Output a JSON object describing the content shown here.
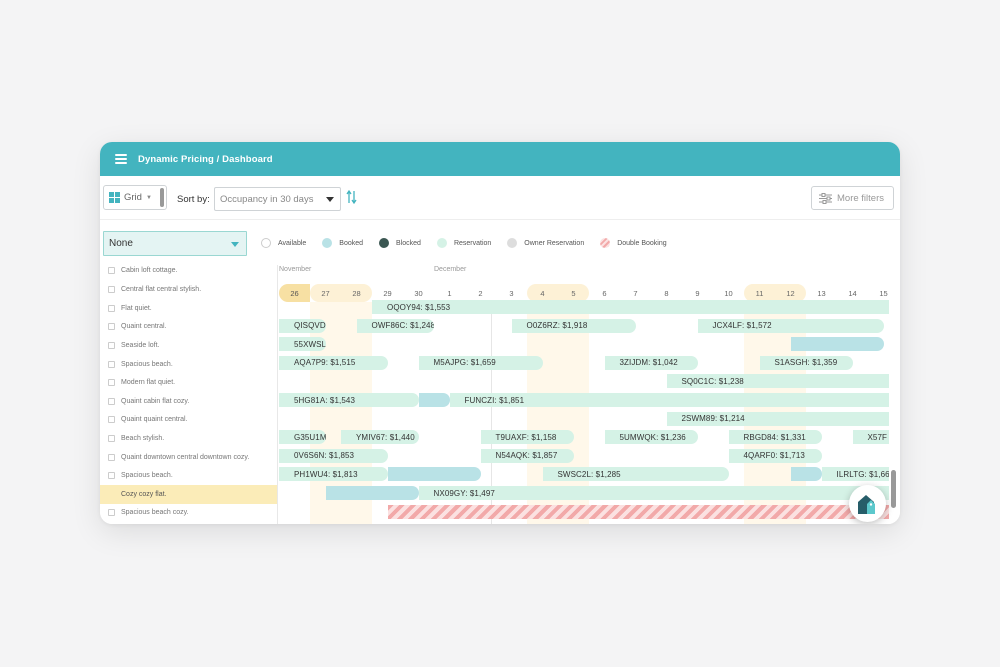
{
  "header": {
    "title": "Dynamic Pricing / Dashboard"
  },
  "toolbar": {
    "view_label": "Grid",
    "sort_label": "Sort by:",
    "sort_value": "Occupancy in 30 days",
    "more_filters_label": "More filters"
  },
  "filter": {
    "value": "None"
  },
  "legend": [
    {
      "label": "Available",
      "color": "#ffffff"
    },
    {
      "label": "Booked",
      "color": "#b9e2e6"
    },
    {
      "label": "Blocked",
      "color": "#3b5752"
    },
    {
      "label": "Reservation",
      "color": "#d5f2e6"
    },
    {
      "label": "Owner Reservation",
      "color": "#dddddd"
    },
    {
      "label": "Double Booking",
      "color": "#f2a9a9"
    }
  ],
  "listings": [
    "Cabin loft cottage.",
    "Central flat central stylish.",
    "Flat quiet.",
    "Quaint central.",
    "Seaside loft.",
    "Spacious beach.",
    "Modern flat quiet.",
    "Quaint cabin flat cozy.",
    "Quaint quaint central.",
    "Beach stylish.",
    "Quaint downtown central downtown cozy.",
    "Spacious beach.",
    "Cozy cozy flat.",
    "Spacious beach cozy."
  ],
  "selected_listing_index": 12,
  "calendar": {
    "months": [
      "November",
      "December"
    ],
    "dates": [
      "26",
      "27",
      "28",
      "29",
      "30",
      "1",
      "2",
      "3",
      "4",
      "5",
      "6",
      "7",
      "8",
      "9",
      "10",
      "11",
      "12",
      "13",
      "14",
      "15"
    ],
    "today_index": 0,
    "weekend_indices": [
      1,
      2,
      8,
      9,
      15,
      16
    ],
    "bookings": [
      {
        "row": 1,
        "start": 3,
        "end": 20,
        "label": "OQOY94: $1,553",
        "type": "reservation"
      },
      {
        "row": 2,
        "start": 0,
        "end": 1.5,
        "label": "QISQVD",
        "type": "reservation"
      },
      {
        "row": 2,
        "start": 2.5,
        "end": 5,
        "label": "OWF86C: $1,248",
        "type": "reservation"
      },
      {
        "row": 2,
        "start": 7.5,
        "end": 11.5,
        "label": "O0Z6RZ: $1,918",
        "type": "reservation"
      },
      {
        "row": 2,
        "start": 13.5,
        "end": 19.5,
        "label": "JCX4LF: $1,572",
        "type": "reservation"
      },
      {
        "row": 3,
        "start": 0,
        "end": 1.5,
        "label": "55XWSL",
        "type": "reservation"
      },
      {
        "row": 3,
        "start": 16.5,
        "end": 19.5,
        "label": "",
        "type": "booked"
      },
      {
        "row": 4,
        "start": 0,
        "end": 3.5,
        "label": "AQA7P9: $1,515",
        "type": "reservation"
      },
      {
        "row": 4,
        "start": 4.5,
        "end": 8.5,
        "label": "M5AJPG: $1,659",
        "type": "reservation"
      },
      {
        "row": 4,
        "start": 10.5,
        "end": 13.5,
        "label": "3ZIJDM: $1,042",
        "type": "reservation"
      },
      {
        "row": 4,
        "start": 15.5,
        "end": 18.5,
        "label": "S1ASGH: $1,359",
        "type": "reservation"
      },
      {
        "row": 5,
        "start": 12.5,
        "end": 20,
        "label": "SQ0C1C: $1,238",
        "type": "reservation"
      },
      {
        "row": 6,
        "start": 0,
        "end": 4.5,
        "label": "5HG81A: $1,543",
        "type": "reservation"
      },
      {
        "row": 6,
        "start": 4.5,
        "end": 5.5,
        "label": "",
        "type": "booked"
      },
      {
        "row": 6,
        "start": 5.5,
        "end": 20,
        "label": "FUNCZI: $1,851",
        "type": "reservation"
      },
      {
        "row": 7,
        "start": 12.5,
        "end": 20,
        "label": "2SWM89: $1,214",
        "type": "reservation"
      },
      {
        "row": 8,
        "start": 0,
        "end": 1.5,
        "label": "G35U1M",
        "type": "reservation"
      },
      {
        "row": 8,
        "start": 2,
        "end": 4.5,
        "label": "YMIV67: $1,440",
        "type": "reservation"
      },
      {
        "row": 8,
        "start": 6.5,
        "end": 9.5,
        "label": "T9UAXF: $1,158",
        "type": "reservation"
      },
      {
        "row": 8,
        "start": 10.5,
        "end": 13.5,
        "label": "5UMWQK: $1,236",
        "type": "reservation"
      },
      {
        "row": 8,
        "start": 14.5,
        "end": 17.5,
        "label": "RBGD84: $1,331",
        "type": "reservation"
      },
      {
        "row": 8,
        "start": 18.5,
        "end": 20,
        "label": "X57F",
        "type": "reservation"
      },
      {
        "row": 9,
        "start": 0,
        "end": 3.5,
        "label": "0V6S6N: $1,853",
        "type": "reservation"
      },
      {
        "row": 9,
        "start": 6.5,
        "end": 9.5,
        "label": "N54AQK: $1,857",
        "type": "reservation"
      },
      {
        "row": 9,
        "start": 14.5,
        "end": 17.5,
        "label": "4QARF0: $1,713",
        "type": "reservation"
      },
      {
        "row": 10,
        "start": 0,
        "end": 3.5,
        "label": "PH1WU4: $1,813",
        "type": "reservation"
      },
      {
        "row": 10,
        "start": 3.5,
        "end": 6.5,
        "label": "",
        "type": "booked"
      },
      {
        "row": 10,
        "start": 8.5,
        "end": 14.5,
        "label": "SWSC2L: $1,285",
        "type": "reservation"
      },
      {
        "row": 10,
        "start": 16.5,
        "end": 17.5,
        "label": "",
        "type": "booked"
      },
      {
        "row": 10,
        "start": 17.5,
        "end": 20,
        "label": "ILRLTG: $1,66",
        "type": "reservation"
      },
      {
        "row": 11,
        "start": 1.5,
        "end": 4.5,
        "label": "",
        "type": "booked"
      },
      {
        "row": 11,
        "start": 4.5,
        "end": 20,
        "label": "NX09GY: $1,497",
        "type": "reservation"
      },
      {
        "row": 12,
        "start": 3.5,
        "end": 20,
        "label": "",
        "type": "double"
      }
    ]
  }
}
